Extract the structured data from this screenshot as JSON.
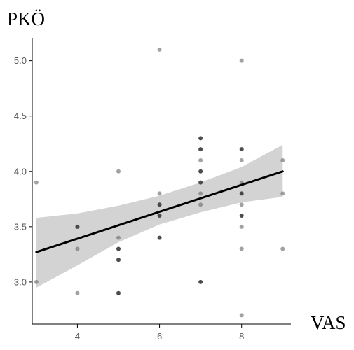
{
  "chart_data": {
    "type": "scatter",
    "ylabel": "PKÖ",
    "xlabel": "VAS",
    "xlim": [
      2.9,
      9.2
    ],
    "ylim": [
      2.62,
      5.2
    ],
    "x_ticks": [
      4,
      6,
      8
    ],
    "y_ticks": [
      3.0,
      3.5,
      4.0,
      4.5,
      5.0
    ],
    "grid": false,
    "colors": {
      "points": "#707070",
      "points_dark": "#3a3a3a",
      "line": "#000000",
      "band": "#d3d3d3",
      "axis": "#000000"
    },
    "points": [
      {
        "x": 3,
        "y": 3.9
      },
      {
        "x": 3,
        "y": 3.0
      },
      {
        "x": 4,
        "y": 3.5,
        "dark": true
      },
      {
        "x": 4,
        "y": 3.3
      },
      {
        "x": 4,
        "y": 2.9
      },
      {
        "x": 5,
        "y": 4.0
      },
      {
        "x": 5,
        "y": 3.4
      },
      {
        "x": 5,
        "y": 3.3,
        "dark": true
      },
      {
        "x": 5,
        "y": 3.2,
        "dark": true
      },
      {
        "x": 5,
        "y": 2.9,
        "dark": true
      },
      {
        "x": 6,
        "y": 5.1
      },
      {
        "x": 6,
        "y": 3.8
      },
      {
        "x": 6,
        "y": 3.7,
        "dark": true
      },
      {
        "x": 6,
        "y": 3.6,
        "dark": true
      },
      {
        "x": 6,
        "y": 3.4,
        "dark": true
      },
      {
        "x": 7,
        "y": 4.3,
        "dark": true
      },
      {
        "x": 7,
        "y": 4.2,
        "dark": true
      },
      {
        "x": 7,
        "y": 4.1
      },
      {
        "x": 7,
        "y": 4.0,
        "dark": true
      },
      {
        "x": 7,
        "y": 3.9,
        "dark": true
      },
      {
        "x": 7,
        "y": 3.8
      },
      {
        "x": 7,
        "y": 3.7
      },
      {
        "x": 7,
        "y": 3.0,
        "dark": true
      },
      {
        "x": 8,
        "y": 5.0
      },
      {
        "x": 8,
        "y": 4.2,
        "dark": true
      },
      {
        "x": 8,
        "y": 4.1
      },
      {
        "x": 8,
        "y": 3.9
      },
      {
        "x": 8,
        "y": 3.8,
        "dark": true
      },
      {
        "x": 8,
        "y": 3.7
      },
      {
        "x": 8,
        "y": 3.6,
        "dark": true
      },
      {
        "x": 8,
        "y": 3.5
      },
      {
        "x": 8,
        "y": 3.3
      },
      {
        "x": 8,
        "y": 2.7
      },
      {
        "x": 9,
        "y": 4.1
      },
      {
        "x": 9,
        "y": 3.8
      },
      {
        "x": 9,
        "y": 3.3
      }
    ],
    "fit_line": {
      "x": [
        3,
        9
      ],
      "y": [
        3.27,
        4.0
      ]
    },
    "confidence_band": {
      "x": [
        3,
        4,
        5,
        6,
        7,
        8,
        9
      ],
      "upper": [
        3.58,
        3.62,
        3.69,
        3.78,
        3.9,
        4.04,
        4.24
      ],
      "lower": [
        2.95,
        3.15,
        3.36,
        3.52,
        3.63,
        3.72,
        3.77
      ]
    }
  }
}
